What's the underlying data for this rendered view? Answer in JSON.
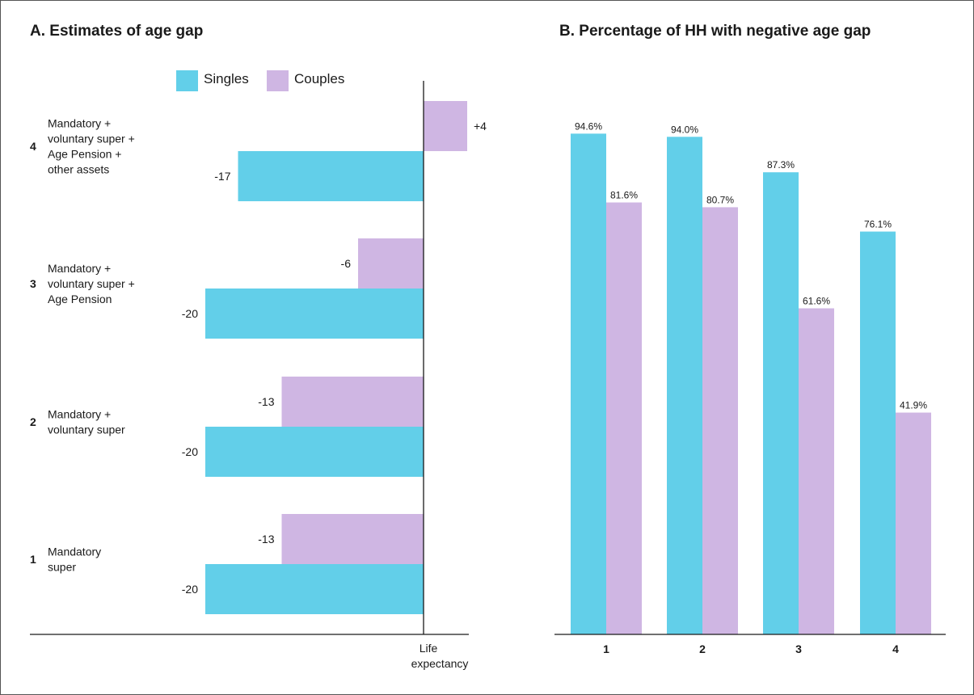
{
  "colors": {
    "singles": "#62cfe9",
    "couples": "#cfb6e3",
    "axis": "#1a1a1a",
    "text": "#1a1a1a"
  },
  "panel_a": {
    "title": "A. Estimates of age gap"
  },
  "panel_b": {
    "title": "B. Percentage of HH with negative age gap"
  },
  "legend": {
    "singles": "Singles",
    "couples": "Couples"
  },
  "chart_data": [
    {
      "type": "bar",
      "orientation": "horizontal",
      "title": "A. Estimates of age gap",
      "xlabel": "Life expectancy",
      "ylabel": "",
      "legend_position": "top",
      "grid": false,
      "xlim": [
        -25,
        5
      ],
      "categories": [
        {
          "num": "4",
          "label": [
            "Mandatory +",
            "voluntary super +",
            "Age Pension +",
            "other assets"
          ]
        },
        {
          "num": "3",
          "label": [
            "Mandatory +",
            "voluntary super +",
            "Age Pension"
          ]
        },
        {
          "num": "2",
          "label": [
            "Mandatory +",
            "voluntary super"
          ]
        },
        {
          "num": "1",
          "label": [
            "Mandatory",
            "super"
          ]
        }
      ],
      "series": [
        {
          "name": "Singles",
          "values": [
            -17,
            -20,
            -20,
            -20
          ],
          "labels": [
            "-17",
            "-20",
            "-20",
            "-20"
          ]
        },
        {
          "name": "Couples",
          "values": [
            4,
            -6,
            -13,
            -13
          ],
          "labels": [
            "+4",
            "-6",
            "-13",
            "-13"
          ]
        }
      ]
    },
    {
      "type": "bar",
      "orientation": "vertical",
      "title": "B. Percentage of HH with negative age gap",
      "xlabel": "",
      "ylabel": "",
      "grid": false,
      "ylim": [
        0,
        100
      ],
      "categories": [
        "1",
        "2",
        "3",
        "4"
      ],
      "series": [
        {
          "name": "Singles",
          "values": [
            94.6,
            94.0,
            87.3,
            76.1
          ],
          "labels": [
            "94.6%",
            "94.0%",
            "87.3%",
            "76.1%"
          ]
        },
        {
          "name": "Couples",
          "values": [
            81.6,
            80.7,
            61.6,
            41.9
          ],
          "labels": [
            "81.6%",
            "80.7%",
            "61.6%",
            "41.9%"
          ]
        }
      ]
    }
  ]
}
